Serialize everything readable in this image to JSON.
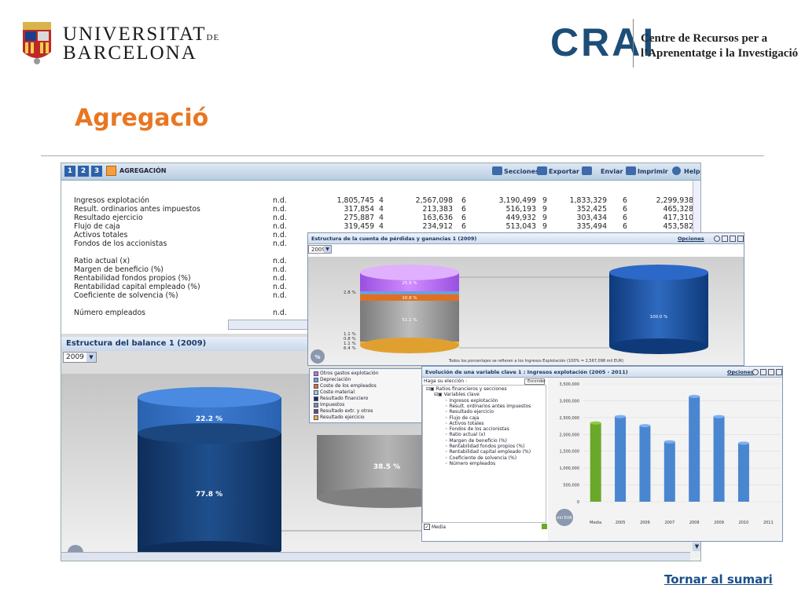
{
  "header": {
    "ub_line1": "UNIVERSITAT",
    "ub_de": "DE",
    "ub_line2": "BARCELONA",
    "crai_logo": "CRAI",
    "crai_line1": "Centre de Recursos per a",
    "crai_line2": "l’Aprenentatge i la Investigació"
  },
  "slide_title": "Agregació",
  "toolbar": {
    "tabs": [
      "1",
      "2",
      "3"
    ],
    "aggregation_label": "AGREGACIÓN",
    "actions": [
      "Secciones",
      "Exportar",
      "Enviar",
      "Imprimir",
      "Help"
    ]
  },
  "table": {
    "rows": [
      [
        "Ingresos explotación",
        "n.d.",
        "1,805,745",
        "4",
        "2,567,098",
        "6",
        "3,190,499",
        "9",
        "1,833,329",
        "6",
        "2,299,938"
      ],
      [
        "Result. ordinarios antes impuestos",
        "n.d.",
        "317,854",
        "4",
        "213,383",
        "6",
        "516,193",
        "9",
        "352,425",
        "6",
        "465,328"
      ],
      [
        "Resultado ejercicio",
        "n.d.",
        "275,887",
        "4",
        "163,636",
        "6",
        "449,932",
        "9",
        "303,434",
        "6",
        "417,310"
      ],
      [
        "Flujo de caja",
        "n.d.",
        "319,459",
        "4",
        "234,912",
        "6",
        "513,043",
        "9",
        "335,494",
        "6",
        "453,582"
      ],
      [
        "Activos totales",
        "n.d.",
        "",
        "",
        "",
        "",
        "",
        "",
        "",
        "",
        ""
      ],
      [
        "Fondos de los accionistas",
        "n.d.",
        "",
        "",
        "",
        "",
        "",
        "",
        "",
        "",
        ""
      ],
      [
        "",
        "",
        "",
        "",
        "",
        "",
        "",
        "",
        "",
        "",
        ""
      ],
      [
        "Ratio actual (x)",
        "n.d.",
        "",
        "",
        "",
        "",
        "",
        "",
        "",
        "",
        ""
      ],
      [
        "Margen de beneficio (%)",
        "n.d.",
        "",
        "",
        "",
        "",
        "",
        "",
        "",
        "",
        ""
      ],
      [
        "Rentabilidad fondos propios (%)",
        "n.d.",
        "",
        "",
        "",
        "",
        "",
        "",
        "",
        "",
        ""
      ],
      [
        "Rentabilidad capital empleado (%)",
        "n.d.",
        "",
        "",
        "",
        "",
        "",
        "",
        "",
        "",
        ""
      ],
      [
        "Coeficiente de solvencia (%)",
        "n.d.",
        "",
        "",
        "",
        "",
        "",
        "",
        "",
        "",
        ""
      ],
      [
        "",
        "",
        "",
        "",
        "",
        "",
        "",
        "",
        "",
        "",
        ""
      ],
      [
        "Número empleados",
        "n.d.",
        "",
        "",
        "",
        "",
        "",
        "",
        "",
        "",
        ""
      ]
    ]
  },
  "balance": {
    "title": "Estructura del balance 1 (2009)",
    "year": "2009",
    "labels": [
      "22.2 %",
      "77.8 %",
      "38.5 %"
    ]
  },
  "pl_panel": {
    "title": "Estructura de la cuenta de pérdidas y ganancias 1 (2009)",
    "options": "Opciones",
    "year": "2009",
    "left_labels": [
      "2.8 %",
      "1.1 %",
      "0.8 %",
      "1.1 %",
      "6.4 %"
    ],
    "stack_labels": [
      "25.9 %",
      "10.8 %",
      "51.1 %"
    ],
    "right_label": "100.0 %",
    "footnote": "Todos los porcentajes se refieren a los Ingresos Explotación (100% = 2,567,098 mil EUR)",
    "badge": "%",
    "legend": [
      {
        "label": "Otros gastos explotación",
        "color": "#b07ae0"
      },
      {
        "label": "Depreciación",
        "color": "#6aa0e0"
      },
      {
        "label": "Coste de los empleados",
        "color": "#e07020"
      },
      {
        "label": "Coste material",
        "color": "#a8c8f0"
      },
      {
        "label": "Resultado financiero",
        "color": "#1a2c60"
      },
      {
        "label": "Impuestos",
        "color": "#8090b0"
      },
      {
        "label": "Resultado extr. y otros",
        "color": "#704090"
      },
      {
        "label": "Resultado ejercicio",
        "color": "#f0b040"
      }
    ]
  },
  "evo_panel": {
    "title": "Evolución de una variable clave 1 : Ingresos explotación (2005 - 2011)",
    "options": "Opciones",
    "prompt": "Haga su elección :",
    "mode": "Esconder",
    "tree": [
      "Ratios financieros y secciones",
      "Variables clave",
      "Ingresos explotación",
      "Result. ordinarios antes impuestos",
      "Resultado ejercicio",
      "Flujo de caja",
      "Activos totales",
      "Fondos de los accionistas",
      "Ratio actual (x)",
      "Margen de beneficio (%)",
      "Rentabilidad fondos propios (%)",
      "Rentabilidad capital empleado (%)",
      "Coeficiente de solvencia (%)",
      "Número empleados"
    ],
    "media_label": "Media",
    "unit_badge": "mil EUR"
  },
  "chart_data": {
    "type": "bar",
    "categories": [
      "Media",
      "2005",
      "2006",
      "2007",
      "2008",
      "2009",
      "2010",
      "2011"
    ],
    "values": [
      2340000,
      2530000,
      2260000,
      1780000,
      3130000,
      2530000,
      1740000,
      0
    ],
    "ylim": [
      0,
      3500000
    ],
    "yticks": [
      "3,500,000",
      "3,000,000",
      "2,500,000",
      "2,000,000",
      "1,500,000",
      "1,000,000",
      "500,000",
      "0"
    ],
    "colors": {
      "media": "#6aa82a",
      "years": "#4a86d0"
    }
  },
  "footer_link": "Tornar al sumari"
}
